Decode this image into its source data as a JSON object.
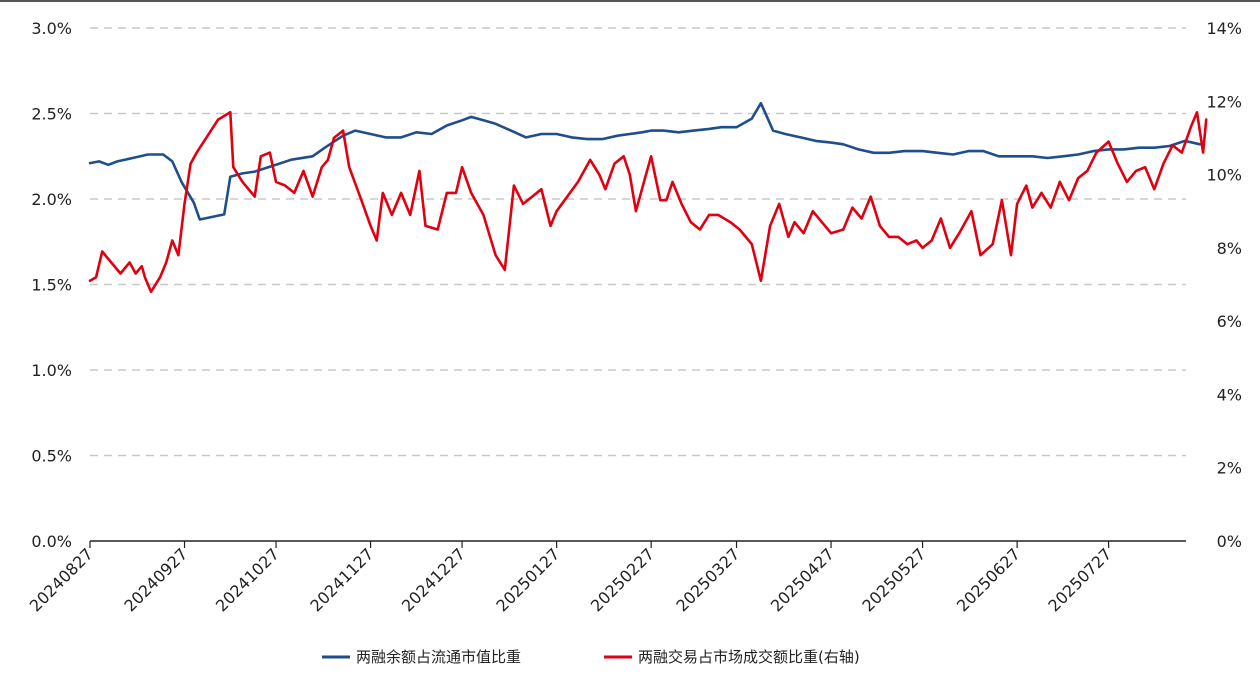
{
  "chart_data": {
    "type": "line",
    "title": "",
    "left_axis": {
      "ylim": [
        0,
        3.0
      ],
      "ticks": [
        "0.0%",
        "0.5%",
        "1.0%",
        "1.5%",
        "2.0%",
        "2.5%",
        "3.0%"
      ]
    },
    "right_axis": {
      "ylim": [
        0,
        14
      ],
      "ticks": [
        "0%",
        "2%",
        "4%",
        "6%",
        "8%",
        "10%",
        "12%",
        "14%"
      ]
    },
    "x_ticks": [
      "20240827",
      "20240927",
      "20241027",
      "20241127",
      "20241227",
      "20250127",
      "20250227",
      "20250327",
      "20250427",
      "20250527",
      "20250627",
      "20250727"
    ],
    "grid": "horizontal-dashed",
    "legend_position": "bottom",
    "series": [
      {
        "name": "两融余额占流通市值比重",
        "axis": "left",
        "color": "#1f4e8c",
        "points": [
          [
            "20240827",
            2.21
          ],
          [
            "20240830",
            2.22
          ],
          [
            "20240902",
            2.2
          ],
          [
            "20240905",
            2.22
          ],
          [
            "20240910",
            2.24
          ],
          [
            "20240915",
            2.26
          ],
          [
            "20240920",
            2.26
          ],
          [
            "20240923",
            2.22
          ],
          [
            "20240926",
            2.1
          ],
          [
            "20240930",
            1.98
          ],
          [
            "20241002",
            1.88
          ],
          [
            "20241010",
            1.91
          ],
          [
            "20241012",
            2.13
          ],
          [
            "20241016",
            2.15
          ],
          [
            "20241020",
            2.16
          ],
          [
            "20241027",
            2.2
          ],
          [
            "20241101",
            2.23
          ],
          [
            "20241108",
            2.25
          ],
          [
            "20241112",
            2.3
          ],
          [
            "20241118",
            2.37
          ],
          [
            "20241122",
            2.4
          ],
          [
            "20241127",
            2.38
          ],
          [
            "20241202",
            2.36
          ],
          [
            "20241207",
            2.36
          ],
          [
            "20241212",
            2.39
          ],
          [
            "20241217",
            2.38
          ],
          [
            "20241222",
            2.43
          ],
          [
            "20241227",
            2.46
          ],
          [
            "20241230",
            2.48
          ],
          [
            "20250103",
            2.46
          ],
          [
            "20250107",
            2.44
          ],
          [
            "20250112",
            2.4
          ],
          [
            "20250117",
            2.36
          ],
          [
            "20250122",
            2.38
          ],
          [
            "20250127",
            2.38
          ],
          [
            "20250201",
            2.36
          ],
          [
            "20250206",
            2.35
          ],
          [
            "20250211",
            2.35
          ],
          [
            "20250216",
            2.37
          ],
          [
            "20250220",
            2.38
          ],
          [
            "20250224",
            2.39
          ],
          [
            "20250227",
            2.4
          ],
          [
            "20250303",
            2.4
          ],
          [
            "20250308",
            2.39
          ],
          [
            "20250313",
            2.4
          ],
          [
            "20250318",
            2.41
          ],
          [
            "20250322",
            2.42
          ],
          [
            "20250327",
            2.42
          ],
          [
            "20250401",
            2.47
          ],
          [
            "20250404",
            2.56
          ],
          [
            "20250408",
            2.4
          ],
          [
            "20250412",
            2.38
          ],
          [
            "20250417",
            2.36
          ],
          [
            "20250422",
            2.34
          ],
          [
            "20250427",
            2.33
          ],
          [
            "20250501",
            2.32
          ],
          [
            "20250506",
            2.29
          ],
          [
            "20250511",
            2.27
          ],
          [
            "20250516",
            2.27
          ],
          [
            "20250521",
            2.28
          ],
          [
            "20250527",
            2.28
          ],
          [
            "20250601",
            2.27
          ],
          [
            "20250606",
            2.26
          ],
          [
            "20250611",
            2.28
          ],
          [
            "20250616",
            2.28
          ],
          [
            "20250621",
            2.25
          ],
          [
            "20250627",
            2.25
          ],
          [
            "20250702",
            2.25
          ],
          [
            "20250707",
            2.24
          ],
          [
            "20250712",
            2.25
          ],
          [
            "20250717",
            2.26
          ],
          [
            "20250722",
            2.28
          ],
          [
            "20250727",
            2.29
          ],
          [
            "20250801",
            2.29
          ],
          [
            "20250806",
            2.3
          ],
          [
            "20250811",
            2.3
          ],
          [
            "20250816",
            2.31
          ],
          [
            "20250821",
            2.34
          ],
          [
            "20250826",
            2.32
          ]
        ]
      },
      {
        "name": "两融交易占市场成交额比重(右轴)",
        "axis": "right",
        "color": "#e00010",
        "points": [
          [
            "20240827",
            7.1
          ],
          [
            "20240829",
            7.2
          ],
          [
            "20240831",
            7.9
          ],
          [
            "20240903",
            7.6
          ],
          [
            "20240906",
            7.3
          ],
          [
            "20240909",
            7.6
          ],
          [
            "20240911",
            7.3
          ],
          [
            "20240913",
            7.5
          ],
          [
            "20240914",
            7.2
          ],
          [
            "20240916",
            6.8
          ],
          [
            "20240919",
            7.2
          ],
          [
            "20240921",
            7.6
          ],
          [
            "20240923",
            8.2
          ],
          [
            "20240925",
            7.8
          ],
          [
            "20240927",
            9.2
          ],
          [
            "20240929",
            10.3
          ],
          [
            "20241001",
            10.6
          ],
          [
            "20241008",
            11.5
          ],
          [
            "20241012",
            11.7
          ],
          [
            "20241013",
            10.2
          ],
          [
            "20241016",
            9.8
          ],
          [
            "20241020",
            9.4
          ],
          [
            "20241022",
            10.5
          ],
          [
            "20241025",
            10.6
          ],
          [
            "20241027",
            9.8
          ],
          [
            "20241030",
            9.7
          ],
          [
            "20241102",
            9.5
          ],
          [
            "20241105",
            10.1
          ],
          [
            "20241108",
            9.4
          ],
          [
            "20241111",
            10.2
          ],
          [
            "20241113",
            10.4
          ],
          [
            "20241115",
            11.0
          ],
          [
            "20241118",
            11.2
          ],
          [
            "20241120",
            10.2
          ],
          [
            "20241124",
            9.3
          ],
          [
            "20241127",
            8.6
          ],
          [
            "20241129",
            8.2
          ],
          [
            "20241201",
            9.5
          ],
          [
            "20241204",
            8.9
          ],
          [
            "20241207",
            9.5
          ],
          [
            "20241210",
            8.9
          ],
          [
            "20241213",
            10.1
          ],
          [
            "20241215",
            8.6
          ],
          [
            "20241219",
            8.5
          ],
          [
            "20241222",
            9.5
          ],
          [
            "20241225",
            9.5
          ],
          [
            "20241227",
            10.2
          ],
          [
            "20241230",
            9.5
          ],
          [
            "20250103",
            8.9
          ],
          [
            "20250107",
            7.8
          ],
          [
            "20250110",
            7.4
          ],
          [
            "20250113",
            9.7
          ],
          [
            "20250116",
            9.2
          ],
          [
            "20250119",
            9.4
          ],
          [
            "20250122",
            9.6
          ],
          [
            "20250125",
            8.6
          ],
          [
            "20250127",
            9.0
          ],
          [
            "20250203",
            9.8
          ],
          [
            "20250207",
            10.4
          ],
          [
            "20250210",
            10.0
          ],
          [
            "20250212",
            9.6
          ],
          [
            "20250215",
            10.3
          ],
          [
            "20250218",
            10.5
          ],
          [
            "20250220",
            10.0
          ],
          [
            "20250222",
            9.0
          ],
          [
            "20250225",
            9.9
          ],
          [
            "20250227",
            10.5
          ],
          [
            "20250302",
            9.3
          ],
          [
            "20250304",
            9.3
          ],
          [
            "20250306",
            9.8
          ],
          [
            "20250309",
            9.2
          ],
          [
            "20250312",
            8.7
          ],
          [
            "20250315",
            8.5
          ],
          [
            "20250318",
            8.9
          ],
          [
            "20250321",
            8.9
          ],
          [
            "20250325",
            8.7
          ],
          [
            "20250328",
            8.5
          ],
          [
            "20250401",
            8.1
          ],
          [
            "20250404",
            7.1
          ],
          [
            "20250407",
            8.6
          ],
          [
            "20250410",
            9.2
          ],
          [
            "20250413",
            8.3
          ],
          [
            "20250415",
            8.7
          ],
          [
            "20250418",
            8.4
          ],
          [
            "20250421",
            9.0
          ],
          [
            "20250424",
            8.7
          ],
          [
            "20250427",
            8.4
          ],
          [
            "20250501",
            8.5
          ],
          [
            "20250504",
            9.1
          ],
          [
            "20250507",
            8.8
          ],
          [
            "20250510",
            9.4
          ],
          [
            "20250513",
            8.6
          ],
          [
            "20250516",
            8.3
          ],
          [
            "20250519",
            8.3
          ],
          [
            "20250522",
            8.1
          ],
          [
            "20250525",
            8.2
          ],
          [
            "20250527",
            8.0
          ],
          [
            "20250530",
            8.2
          ],
          [
            "20250602",
            8.8
          ],
          [
            "20250605",
            8.0
          ],
          [
            "20250608",
            8.4
          ],
          [
            "20250612",
            9.0
          ],
          [
            "20250615",
            7.8
          ],
          [
            "20250619",
            8.1
          ],
          [
            "20250622",
            9.3
          ],
          [
            "20250625",
            7.8
          ],
          [
            "20250627",
            9.2
          ],
          [
            "20250630",
            9.7
          ],
          [
            "20250702",
            9.1
          ],
          [
            "20250705",
            9.5
          ],
          [
            "20250708",
            9.1
          ],
          [
            "20250711",
            9.8
          ],
          [
            "20250714",
            9.3
          ],
          [
            "20250717",
            9.9
          ],
          [
            "20250720",
            10.1
          ],
          [
            "20250723",
            10.6
          ],
          [
            "20250727",
            10.9
          ],
          [
            "20250730",
            10.3
          ],
          [
            "20250802",
            9.8
          ],
          [
            "20250805",
            10.1
          ],
          [
            "20250808",
            10.2
          ],
          [
            "20250811",
            9.6
          ],
          [
            "20250814",
            10.3
          ],
          [
            "20250817",
            10.8
          ],
          [
            "20250820",
            10.6
          ],
          [
            "20250823",
            11.3
          ],
          [
            "20250825",
            11.7
          ],
          [
            "20250827",
            10.6
          ],
          [
            "20250828",
            11.5
          ]
        ]
      }
    ]
  }
}
